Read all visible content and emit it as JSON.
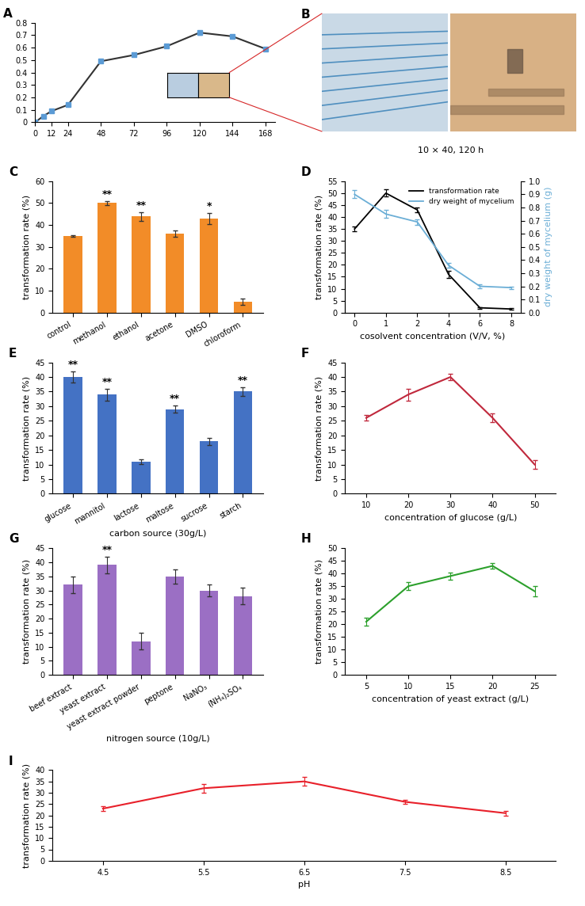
{
  "chart_data": [
    {
      "panel": "A",
      "type": "line",
      "x": [
        0,
        6,
        12,
        24,
        48,
        72,
        96,
        120,
        144,
        168
      ],
      "values": [
        0,
        0.05,
        0.09,
        0.14,
        0.49,
        0.54,
        0.61,
        0.72,
        0.69,
        0.59
      ],
      "errors": [
        0,
        0.005,
        0.005,
        0.007,
        0.012,
        0.01,
        0.012,
        0.015,
        0.015,
        0.012
      ],
      "color": "#333333",
      "marker": "s",
      "xlim": [
        0,
        175
      ],
      "xticks": [
        0,
        12,
        24,
        48,
        72,
        96,
        120,
        144,
        168
      ],
      "ylim": [
        0,
        0.8
      ],
      "yticks": [
        0,
        0.1,
        0.2,
        0.3,
        0.4,
        0.5,
        0.6,
        0.7,
        0.8
      ]
    },
    {
      "panel": "C",
      "type": "bar",
      "categories": [
        "control",
        "methanol",
        "ethanol",
        "acetone",
        "DMSO",
        "chloroform"
      ],
      "values": [
        35,
        50,
        44,
        36,
        43,
        5
      ],
      "errors": [
        0.5,
        1,
        2,
        1.5,
        2.5,
        1.5
      ],
      "significance": [
        null,
        "**",
        "**",
        null,
        "*",
        null
      ],
      "color": "#f28c28",
      "ylabel": "transformation rate (%)",
      "ylim": [
        0,
        60
      ],
      "yticks": [
        0,
        10,
        20,
        30,
        40,
        50,
        60
      ]
    },
    {
      "panel": "D",
      "type": "line",
      "categories": [
        "0",
        "1",
        "2",
        "4",
        "6",
        "8"
      ],
      "series": [
        {
          "name": "transformation rate",
          "color": "#000000",
          "values": [
            35,
            50,
            43,
            16,
            2,
            1.5
          ],
          "errors": [
            1,
            1.5,
            1,
            1.5,
            0.3,
            0.3
          ]
        },
        {
          "name": "dry weight of mycelium",
          "color": "#6baed6",
          "axis": "y2",
          "values": [
            0.9,
            0.75,
            0.69,
            0.36,
            0.2,
            0.19
          ],
          "errors": [
            0.03,
            0.03,
            0.02,
            0.02,
            0.015,
            0.01
          ]
        }
      ],
      "xlabel": "cosolvent concentration (V/V, %)",
      "ylabel": "transformation rate (%)",
      "y2label": "dry weight of mycelium (g)",
      "legend": "upper right",
      "ylim": [
        0,
        55
      ],
      "yticks": [
        0,
        5,
        10,
        15,
        20,
        25,
        30,
        35,
        40,
        45,
        50,
        55
      ],
      "y2lim": [
        0,
        1
      ],
      "y2ticks": [
        {
          "value": 0,
          "label": "0.0"
        },
        0.1,
        0.2,
        0.3,
        0.4,
        0.5,
        0.6,
        0.7,
        0.8,
        0.9,
        {
          "value": 1,
          "label": "1.0"
        }
      ]
    },
    {
      "panel": "E",
      "type": "bar",
      "categories": [
        "glucose",
        "mannitol",
        "lactose",
        "maltose",
        "sucrose",
        "starch"
      ],
      "values": [
        40,
        34,
        11,
        29,
        18,
        35
      ],
      "errors": [
        2,
        2,
        0.7,
        1.2,
        1.2,
        1.5
      ],
      "significance": [
        "**",
        "**",
        null,
        "**",
        null,
        "**"
      ],
      "color": "#4472c4",
      "xlabel": "carbon source (30g/L)",
      "ylabel": "transformation rate (%)",
      "ylim": [
        0,
        45
      ],
      "yticks": [
        0,
        5,
        10,
        15,
        20,
        25,
        30,
        35,
        40,
        45
      ]
    },
    {
      "panel": "F",
      "type": "line",
      "x": [
        10,
        20,
        30,
        40,
        50
      ],
      "values": [
        26,
        34,
        40,
        26,
        10
      ],
      "errors": [
        1,
        2,
        1,
        1.5,
        1.5
      ],
      "color": "#c0283c",
      "xlabel": "concentration of glucose (g/L)",
      "ylabel": "transformation rate (%)",
      "xlim": [
        5,
        55
      ],
      "xticks": [
        10,
        20,
        30,
        40,
        50
      ],
      "ylim": [
        0,
        45
      ],
      "yticks": [
        0,
        5,
        10,
        15,
        20,
        25,
        30,
        35,
        40,
        45
      ]
    },
    {
      "panel": "G",
      "type": "bar",
      "categories": [
        "beef extract",
        "yeast extract",
        "yeast extract powder",
        "peptone",
        "NaNO₃",
        "(NH₄)₂SO₄"
      ],
      "values": [
        32,
        39,
        12,
        35,
        30,
        28
      ],
      "errors": [
        3,
        3,
        3,
        2.5,
        2,
        3
      ],
      "significance": [
        null,
        "**",
        null,
        null,
        null,
        null
      ],
      "color": "#9b6fc4",
      "xlabel": "nitrogen source (10g/L)",
      "ylabel": "transformation rate (%)",
      "ylim": [
        0,
        45
      ],
      "yticks": [
        0,
        5,
        10,
        15,
        20,
        25,
        30,
        35,
        40,
        45
      ]
    },
    {
      "panel": "H",
      "type": "line",
      "x": [
        5,
        10,
        15,
        20,
        25
      ],
      "values": [
        21,
        35,
        39,
        43,
        33
      ],
      "errors": [
        1.5,
        1.5,
        1.5,
        1,
        2
      ],
      "color": "#2ca02c",
      "xlabel": "concentration of yeast extract (g/L)",
      "ylabel": "transformation rate (%)",
      "xlim": [
        2.5,
        27.5
      ],
      "xticks": [
        5,
        10,
        15,
        20,
        25
      ],
      "ylim": [
        0,
        50
      ],
      "yticks": [
        0,
        5,
        10,
        15,
        20,
        25,
        30,
        35,
        40,
        45,
        50
      ]
    },
    {
      "panel": "I",
      "type": "line",
      "x": [
        4.5,
        5.5,
        6.5,
        7.5,
        8.5
      ],
      "values": [
        23,
        32,
        35,
        26,
        21
      ],
      "errors": [
        1,
        2,
        2,
        1,
        1
      ],
      "color": "#e8202a",
      "xlabel": "pH",
      "ylabel": "transformation rate (%)",
      "xlim": [
        4.0,
        9.0
      ],
      "xticks": [
        4.5,
        5.5,
        6.5,
        7.5,
        8.5
      ],
      "ylim": [
        0,
        40
      ],
      "yticks": [
        0,
        5,
        10,
        15,
        20,
        25,
        30,
        35,
        40
      ]
    }
  ],
  "image_panel": {
    "panel": "B",
    "caption": "10 × 40, 120 h"
  }
}
